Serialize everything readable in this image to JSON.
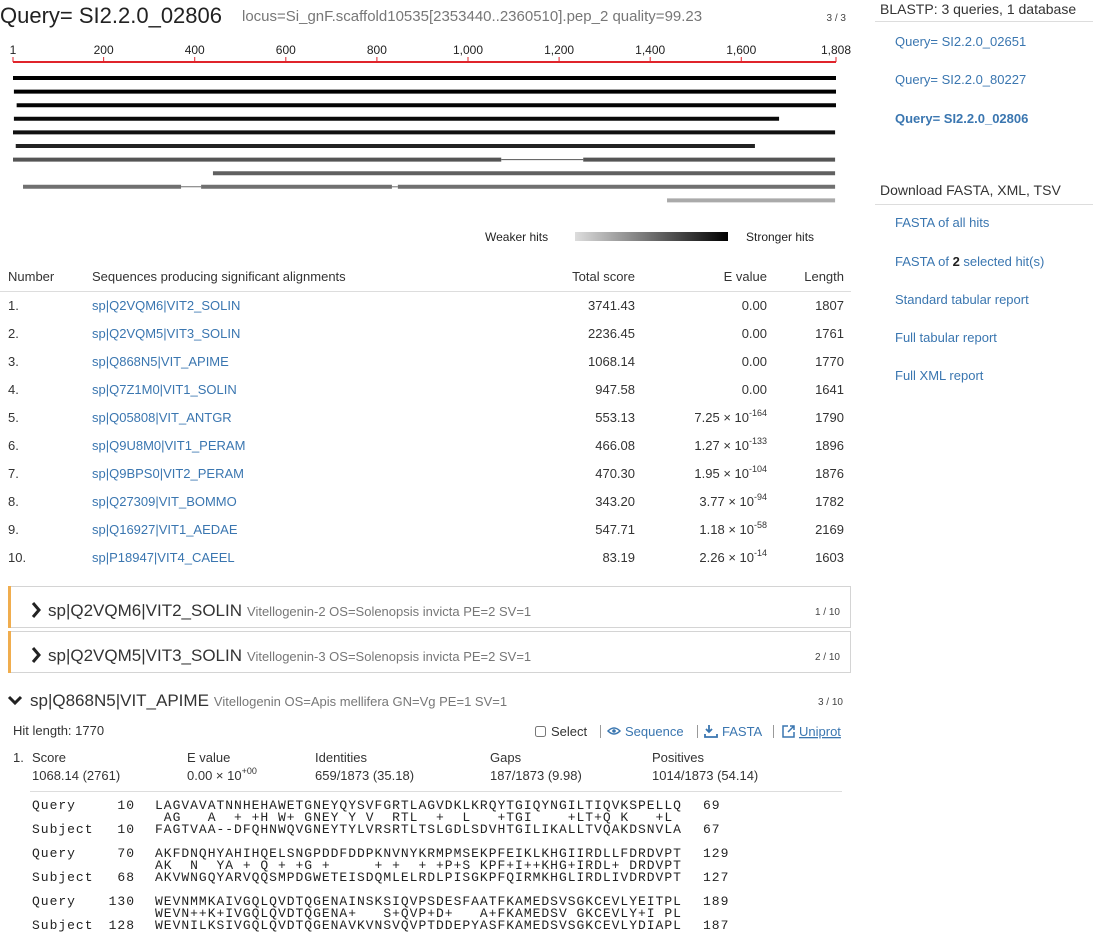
{
  "header": {
    "query": "Query= SI2.2.0_02806",
    "meta": "locus=Si_gnF.scaffold10535[2353440..2360510].pep_2 quality=99.23",
    "position": "3 / 3"
  },
  "graph": {
    "xlim": [
      1,
      1808
    ],
    "xticks": [
      1,
      200,
      400,
      600,
      800,
      {
        "value": 1000,
        "label": "1,000"
      },
      {
        "value": 1200,
        "label": "1,200"
      },
      {
        "value": 1400,
        "label": "1,400"
      },
      {
        "value": 1600,
        "label": "1,600"
      },
      {
        "value": 1808,
        "label": "1,808"
      }
    ],
    "hits": [
      {
        "color": "#000000",
        "segments": [
          [
            1,
            1808
          ]
        ]
      },
      {
        "color": "#000000",
        "segments": [
          [
            3,
            1808
          ]
        ]
      },
      {
        "color": "#050505",
        "segments": [
          [
            9,
            1808
          ]
        ]
      },
      {
        "color": "#0a0a0a",
        "segments": [
          [
            3,
            1683
          ]
        ]
      },
      {
        "color": "#111111",
        "segments": [
          [
            1,
            1806
          ]
        ]
      },
      {
        "color": "#222222",
        "segments": [
          [
            7,
            1630
          ]
        ]
      },
      {
        "color": "#555555",
        "segments": [
          [
            1,
            1073
          ],
          [
            1253,
            1806
          ]
        ]
      },
      {
        "color": "#606060",
        "segments": [
          [
            440,
            1806
          ]
        ]
      },
      {
        "color": "#707070",
        "segments": [
          [
            23,
            370
          ],
          [
            414,
            833
          ],
          [
            846,
            1806
          ]
        ]
      },
      {
        "color": "#aaaaaa",
        "segments": [
          [
            1437,
            1806
          ]
        ]
      }
    ],
    "legend": {
      "weaker": "Weaker hits",
      "stronger": "Stronger hits"
    }
  },
  "table": {
    "headers": [
      "Number",
      "Sequences producing significant alignments",
      "Total score",
      "E value",
      "Length"
    ],
    "rows": [
      {
        "number": "1.",
        "id": "sp|Q2VQM6|VIT2_SOLIN",
        "score": "3741.43",
        "evalue": "0.00",
        "length": 1807
      },
      {
        "number": "2.",
        "id": "sp|Q2VQM5|VIT3_SOLIN",
        "score": "2236.45",
        "evalue": "0.00",
        "length": 1761
      },
      {
        "number": "3.",
        "id": "sp|Q868N5|VIT_APIME",
        "score": "1068.14",
        "evalue": "0.00",
        "length": 1770
      },
      {
        "number": "4.",
        "id": "sp|Q7Z1M0|VIT1_SOLIN",
        "score": "947.58",
        "evalue": "0.00",
        "length": 1641
      },
      {
        "number": "5.",
        "id": "sp|Q05808|VIT_ANTGR",
        "score": "553.13",
        "evalue": "7.25 × 10",
        "exponent": "-164",
        "length": 1790
      },
      {
        "number": "6.",
        "id": "sp|Q9U8M0|VIT1_PERAM",
        "score": "466.08",
        "evalue": "1.27 × 10",
        "exponent": "-133",
        "length": 1896
      },
      {
        "number": "7.",
        "id": "sp|Q9BPS0|VIT2_PERAM",
        "score": "470.30",
        "evalue": "1.95 × 10",
        "exponent": "-104",
        "length": 1876
      },
      {
        "number": "8.",
        "id": "sp|Q27309|VIT_BOMMO",
        "score": "343.20",
        "evalue": "3.77 × 10",
        "exponent": "-94",
        "length": 1782
      },
      {
        "number": "9.",
        "id": "sp|Q16927|VIT1_AEDAE",
        "score": "547.71",
        "evalue": "1.18 × 10",
        "exponent": "-58",
        "length": 2169
      },
      {
        "number": "10.",
        "id": "sp|P18947|VIT4_CAEEL",
        "score": "83.19",
        "evalue": "2.26 × 10",
        "exponent": "-14",
        "length": 1603
      }
    ]
  },
  "hits": [
    {
      "id": "sp|Q2VQM6|VIT2_SOLIN",
      "description": "Vitellogenin-2 OS=Solenopsis invicta PE=2 SV=1",
      "position": "1 / 10"
    },
    {
      "id": "sp|Q2VQM5|VIT3_SOLIN",
      "description": "Vitellogenin-3 OS=Solenopsis invicta PE=2 SV=1",
      "position": "2 / 10"
    },
    {
      "id": "sp|Q868N5|VIT_APIME",
      "description": "Vitellogenin OS=Apis mellifera GN=Vg PE=1 SV=1",
      "position": "3 / 10"
    }
  ],
  "detail": {
    "hit_length": "Hit length: 1770",
    "actions": [
      "Select",
      "Sequence",
      "FASTA",
      "Uniprot"
    ],
    "hsp": {
      "number": "1.",
      "labels": [
        "Score",
        "E value",
        "Identities",
        "Gaps",
        "Positives"
      ],
      "score": "1068.14 (2761)",
      "evalue": "0.00 × 10",
      "evalue_exponent": "+00",
      "identities": "659/1873 (35.18)",
      "gaps": "187/1873 (9.98)",
      "positives": "1014/1873 (54.14)"
    },
    "alignment": [
      {
        "query_label": "Query",
        "query_start": 10,
        "query_seq": "LAGVAVATNNHEHAWETGNEYQYSVFGRTLAGVDKLKRQYTGIQYNGILTIQVKSPELLQ",
        "query_end": 69,
        "midline": " AG   A  + +H W+ GNEY Y V  RTL  +  L   +TGI    +LT+Q K   +L",
        "subject_label": "Subject",
        "subject_start": 10,
        "subject_seq": "FAGTVAA--DFQHNWQVGNEYTYLVRSRTLTSLGDLSDVHTGILIKALLTVQAKDSNVLA",
        "subject_end": 67
      },
      {
        "query_label": "Query",
        "query_start": 70,
        "query_seq": "AKFDNQHYAHIHQELSNGPDDFDDPKNVNYKRMPMSEKPFEIKLKHGIIRDLLFDRDVPT",
        "query_end": 129,
        "midline": "AK  N  YA + Q + +G +     + +  + +P+S KPF+I++KHG+IRDL+ DRDVPT",
        "subject_label": "Subject",
        "subject_start": 68,
        "subject_seq": "AKVWNGQYARVQQSMPDGWETEISDQMLELRDLPISGKPFQIRMKHGLIRDLIVDRDVPT",
        "subject_end": 127
      },
      {
        "query_label": "Query",
        "query_start": 130,
        "query_seq": "WEVNMMKAIVGQLQVDTQGENAINSKSIQVPSDESFAATFKAMEDSVSGKCEVLYEITPL",
        "query_end": 189,
        "midline": "WEVN++K+IVGQLQVDTQGENA+   S+QVP+D+   A+FKAMEDSV GKCEVLY+I PL",
        "subject_label": "Subject",
        "subject_start": 128,
        "subject_seq": "WEVNILKSIVGQLQVDTQGENAVKVNSVQVPTDDEPYASFKAMEDSVSGKCEVLYDIAPL",
        "subject_end": 187
      }
    ]
  },
  "sidebar": {
    "title": "BLASTP: 3 queries, 1 database",
    "queries": [
      "Query= SI2.2.0_02651",
      "Query= SI2.2.0_80227",
      "Query= SI2.2.0_02806"
    ],
    "download_title": "Download FASTA, XML, TSV",
    "all_hits": "FASTA of all hits",
    "selected": {
      "before": "FASTA of ",
      "count": 2,
      "after": " selected hit(s)"
    },
    "reports": [
      "Standard tabular report",
      "Full tabular report",
      "Full XML report"
    ]
  }
}
